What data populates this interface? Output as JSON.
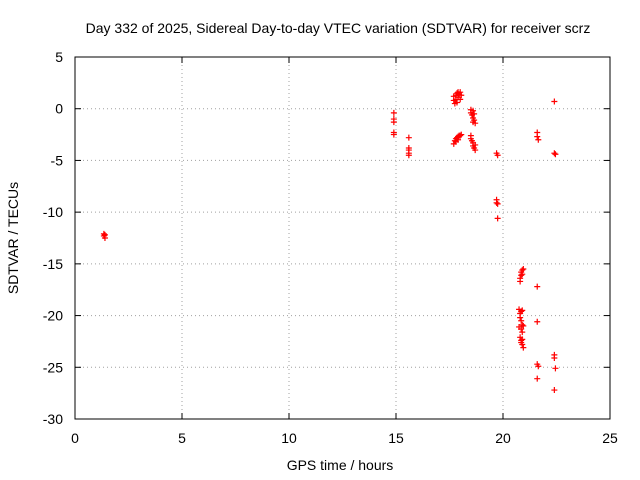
{
  "chart_data": {
    "type": "scatter",
    "title": "Day 332 of 2025, Sidereal Day-to-day VTEC variation (SDTVAR) for receiver scrz",
    "xlabel": "GPS time / hours",
    "ylabel": "SDTVAR / TECUs",
    "xlim": [
      0,
      25
    ],
    "ylim": [
      -30,
      5
    ],
    "xticks": [
      0,
      5,
      10,
      15,
      20,
      25
    ],
    "xtick_labels": [
      "0",
      "5",
      "10",
      "15",
      "20",
      "25"
    ],
    "yticks": [
      -30,
      -25,
      -20,
      -15,
      -10,
      -5,
      0,
      5
    ],
    "ytick_labels": [
      "-30",
      "-25",
      "-20",
      "-15",
      "-10",
      "-5",
      "0",
      "5"
    ],
    "grid": true,
    "marker": "+",
    "color": "#ff0000",
    "series": [
      {
        "name": "SDTVAR",
        "points": [
          [
            1.35,
            -12.1
          ],
          [
            1.35,
            -12.3
          ],
          [
            1.4,
            -12.5
          ],
          [
            1.4,
            -12.2
          ],
          [
            14.9,
            -0.4
          ],
          [
            14.9,
            -1.0
          ],
          [
            14.9,
            -1.3
          ],
          [
            14.9,
            -2.3
          ],
          [
            14.9,
            -2.5
          ],
          [
            15.6,
            -2.8
          ],
          [
            15.6,
            -3.8
          ],
          [
            15.6,
            -4.0
          ],
          [
            15.6,
            -4.3
          ],
          [
            15.6,
            -4.5
          ],
          [
            17.7,
            1.2
          ],
          [
            17.7,
            0.8
          ],
          [
            17.75,
            0.5
          ],
          [
            17.8,
            1.3
          ],
          [
            17.8,
            0.9
          ],
          [
            17.85,
            1.5
          ],
          [
            17.85,
            0.6
          ],
          [
            17.9,
            1.6
          ],
          [
            17.9,
            1.1
          ],
          [
            17.95,
            1.4
          ],
          [
            18.0,
            1.6
          ],
          [
            18.0,
            0.9
          ],
          [
            18.05,
            1.3
          ],
          [
            17.7,
            -3.4
          ],
          [
            17.75,
            -3.1
          ],
          [
            17.8,
            -3.2
          ],
          [
            17.8,
            -2.9
          ],
          [
            17.85,
            -2.8
          ],
          [
            17.9,
            -2.7
          ],
          [
            17.9,
            -3.0
          ],
          [
            17.95,
            -2.6
          ],
          [
            18.0,
            -2.6
          ],
          [
            18.05,
            -2.5
          ],
          [
            18.5,
            -0.1
          ],
          [
            18.5,
            -0.4
          ],
          [
            18.55,
            -0.6
          ],
          [
            18.6,
            -0.2
          ],
          [
            18.6,
            -0.9
          ],
          [
            18.6,
            -1.3
          ],
          [
            18.65,
            -0.5
          ],
          [
            18.65,
            -1.1
          ],
          [
            18.7,
            -1.4
          ],
          [
            18.5,
            -2.6
          ],
          [
            18.5,
            -2.9
          ],
          [
            18.55,
            -3.1
          ],
          [
            18.6,
            -3.3
          ],
          [
            18.6,
            -3.6
          ],
          [
            18.65,
            -3.8
          ],
          [
            18.7,
            -3.5
          ],
          [
            18.7,
            -4.0
          ],
          [
            19.7,
            -4.3
          ],
          [
            19.75,
            -4.5
          ],
          [
            19.7,
            -8.8
          ],
          [
            19.7,
            -9.1
          ],
          [
            19.75,
            -9.2
          ],
          [
            19.75,
            -10.6
          ],
          [
            20.8,
            -16.4
          ],
          [
            20.85,
            -16.1
          ],
          [
            20.85,
            -15.8
          ],
          [
            20.9,
            -15.6
          ],
          [
            20.9,
            -16.0
          ],
          [
            20.95,
            -15.5
          ],
          [
            20.8,
            -16.7
          ],
          [
            20.75,
            -19.4
          ],
          [
            20.8,
            -19.8
          ],
          [
            20.8,
            -20.2
          ],
          [
            20.85,
            -19.6
          ],
          [
            20.85,
            -20.5
          ],
          [
            20.9,
            -19.5
          ],
          [
            20.9,
            -20.9
          ],
          [
            20.75,
            -21.1
          ],
          [
            20.85,
            -21.3
          ],
          [
            20.9,
            -21.6
          ],
          [
            20.95,
            -21.0
          ],
          [
            20.8,
            -22.1
          ],
          [
            20.85,
            -22.4
          ],
          [
            20.85,
            -22.6
          ],
          [
            20.9,
            -22.8
          ],
          [
            20.95,
            -23.1
          ],
          [
            20.9,
            -22.3
          ],
          [
            21.6,
            -2.3
          ],
          [
            21.6,
            -2.7
          ],
          [
            21.65,
            -3.0
          ],
          [
            21.6,
            -17.2
          ],
          [
            21.6,
            -20.6
          ],
          [
            21.6,
            -24.7
          ],
          [
            21.65,
            -24.9
          ],
          [
            21.6,
            -26.1
          ],
          [
            22.4,
            0.7
          ],
          [
            22.4,
            -4.3
          ],
          [
            22.45,
            -4.4
          ],
          [
            22.4,
            -23.8
          ],
          [
            22.4,
            -24.1
          ],
          [
            22.45,
            -25.1
          ],
          [
            22.4,
            -27.2
          ]
        ]
      }
    ]
  }
}
